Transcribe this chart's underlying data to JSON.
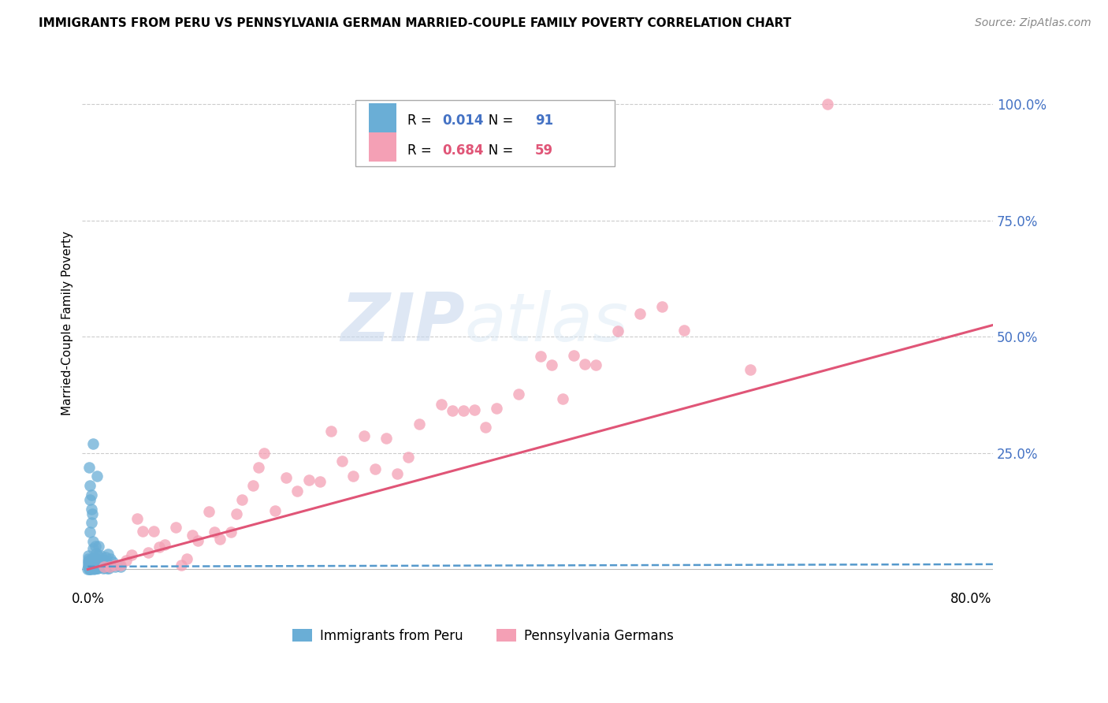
{
  "title": "IMMIGRANTS FROM PERU VS PENNSYLVANIA GERMAN MARRIED-COUPLE FAMILY POVERTY CORRELATION CHART",
  "source": "Source: ZipAtlas.com",
  "ylabel": "Married-Couple Family Poverty",
  "R1": "0.014",
  "N1": "91",
  "R2": "0.684",
  "N2": "59",
  "color1": "#6aaed6",
  "color2": "#f4a0b5",
  "line_color1": "#5599cc",
  "line_color2": "#e05577",
  "legend_label1": "Immigrants from Peru",
  "legend_label2": "Pennsylvania Germans",
  "watermark_zip": "ZIP",
  "watermark_atlas": "atlas",
  "ytick_labels": [
    "",
    "25.0%",
    "50.0%",
    "75.0%",
    "100.0%"
  ],
  "ytick_pos": [
    0.0,
    0.25,
    0.5,
    0.75,
    1.0
  ],
  "xtick_pos": [
    0.0,
    0.2,
    0.4,
    0.6,
    0.8
  ],
  "xtick_labels": [
    "0.0%",
    "",
    "",
    "",
    "80.0%"
  ]
}
